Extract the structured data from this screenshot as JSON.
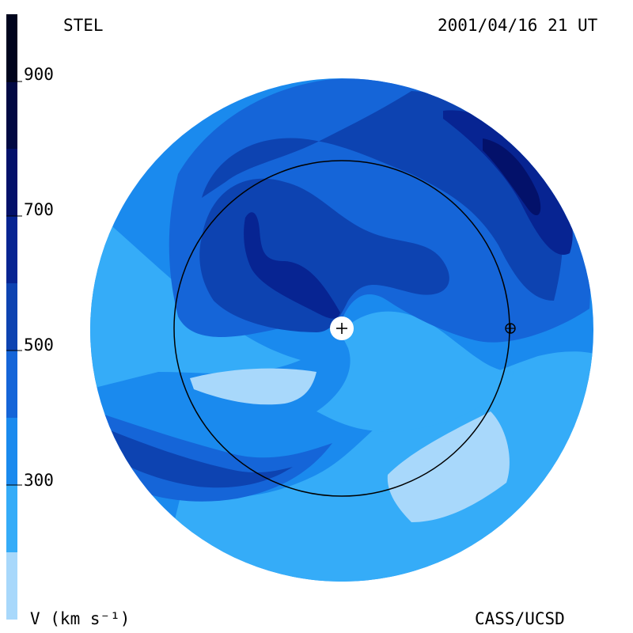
{
  "header": {
    "left_label": "STEL",
    "timestamp": "2001/04/16 21 UT"
  },
  "footer": {
    "credit": "CASS/UCSD"
  },
  "colorbar": {
    "unit_label": "V (km s⁻¹)",
    "ticks": [
      "900",
      "700",
      "500",
      "300"
    ],
    "range": [
      100,
      1000
    ],
    "levels": [
      {
        "from": 100,
        "to": 200,
        "color": "#a8d8fb"
      },
      {
        "from": 200,
        "to": 300,
        "color": "#35acf8"
      },
      {
        "from": 300,
        "to": 400,
        "color": "#1a8aee"
      },
      {
        "from": 400,
        "to": 500,
        "color": "#1565d8"
      },
      {
        "from": 500,
        "to": 600,
        "color": "#0d43b1"
      },
      {
        "from": 600,
        "to": 700,
        "color": "#072492"
      },
      {
        "from": 700,
        "to": 800,
        "color": "#03116a"
      },
      {
        "from": 800,
        "to": 900,
        "color": "#010943"
      },
      {
        "from": 900,
        "to": 1000,
        "color": "#00041d"
      }
    ]
  },
  "markers": {
    "sun_symbol": "+",
    "earth_symbol": "earth-orbit-symbol"
  }
}
